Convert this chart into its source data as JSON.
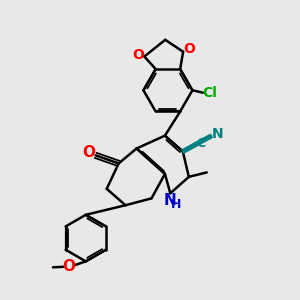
{
  "background_color": "#e8e8e8",
  "bond_color": "#000000",
  "O_color": "#ff0000",
  "N_color": "#0000cd",
  "Cl_color": "#00aa00",
  "CN_color": "#008080",
  "figsize": [
    3.0,
    3.0
  ],
  "dpi": 100,
  "xlim": [
    0,
    10
  ],
  "ylim": [
    0,
    10
  ]
}
